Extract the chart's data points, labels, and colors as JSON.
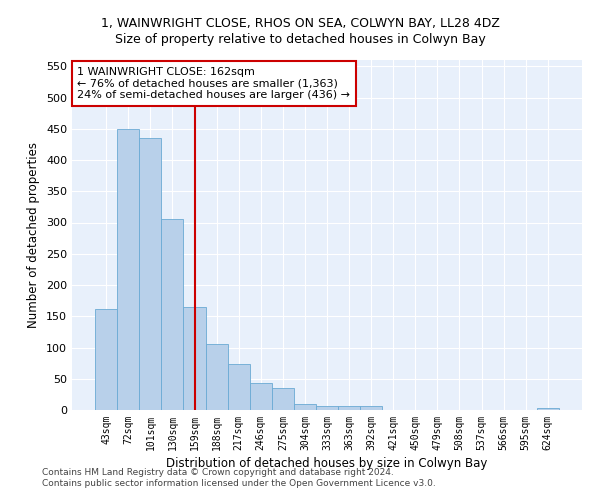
{
  "title": "1, WAINWRIGHT CLOSE, RHOS ON SEA, COLWYN BAY, LL28 4DZ",
  "subtitle": "Size of property relative to detached houses in Colwyn Bay",
  "xlabel": "Distribution of detached houses by size in Colwyn Bay",
  "ylabel": "Number of detached properties",
  "bar_labels": [
    "43sqm",
    "72sqm",
    "101sqm",
    "130sqm",
    "159sqm",
    "188sqm",
    "217sqm",
    "246sqm",
    "275sqm",
    "304sqm",
    "333sqm",
    "363sqm",
    "392sqm",
    "421sqm",
    "450sqm",
    "479sqm",
    "508sqm",
    "537sqm",
    "566sqm",
    "595sqm",
    "624sqm"
  ],
  "bar_values": [
    162,
    450,
    435,
    306,
    165,
    105,
    73,
    44,
    35,
    9,
    7,
    7,
    6,
    0,
    0,
    0,
    0,
    0,
    0,
    0,
    3
  ],
  "bar_color": "#b8d0ea",
  "bar_edge_color": "#6aaad4",
  "vline_index": 4,
  "vline_color": "#cc0000",
  "annotation_text": "1 WAINWRIGHT CLOSE: 162sqm\n← 76% of detached houses are smaller (1,363)\n24% of semi-detached houses are larger (436) →",
  "annotation_box_color": "#ffffff",
  "annotation_box_edge": "#cc0000",
  "ylim": [
    0,
    560
  ],
  "yticks": [
    0,
    50,
    100,
    150,
    200,
    250,
    300,
    350,
    400,
    450,
    500,
    550
  ],
  "bg_color": "#e8f0fb",
  "grid_color": "#ffffff",
  "title_fontsize": 9,
  "subtitle_fontsize": 9,
  "footer_line1": "Contains HM Land Registry data © Crown copyright and database right 2024.",
  "footer_line2": "Contains public sector information licensed under the Open Government Licence v3.0."
}
